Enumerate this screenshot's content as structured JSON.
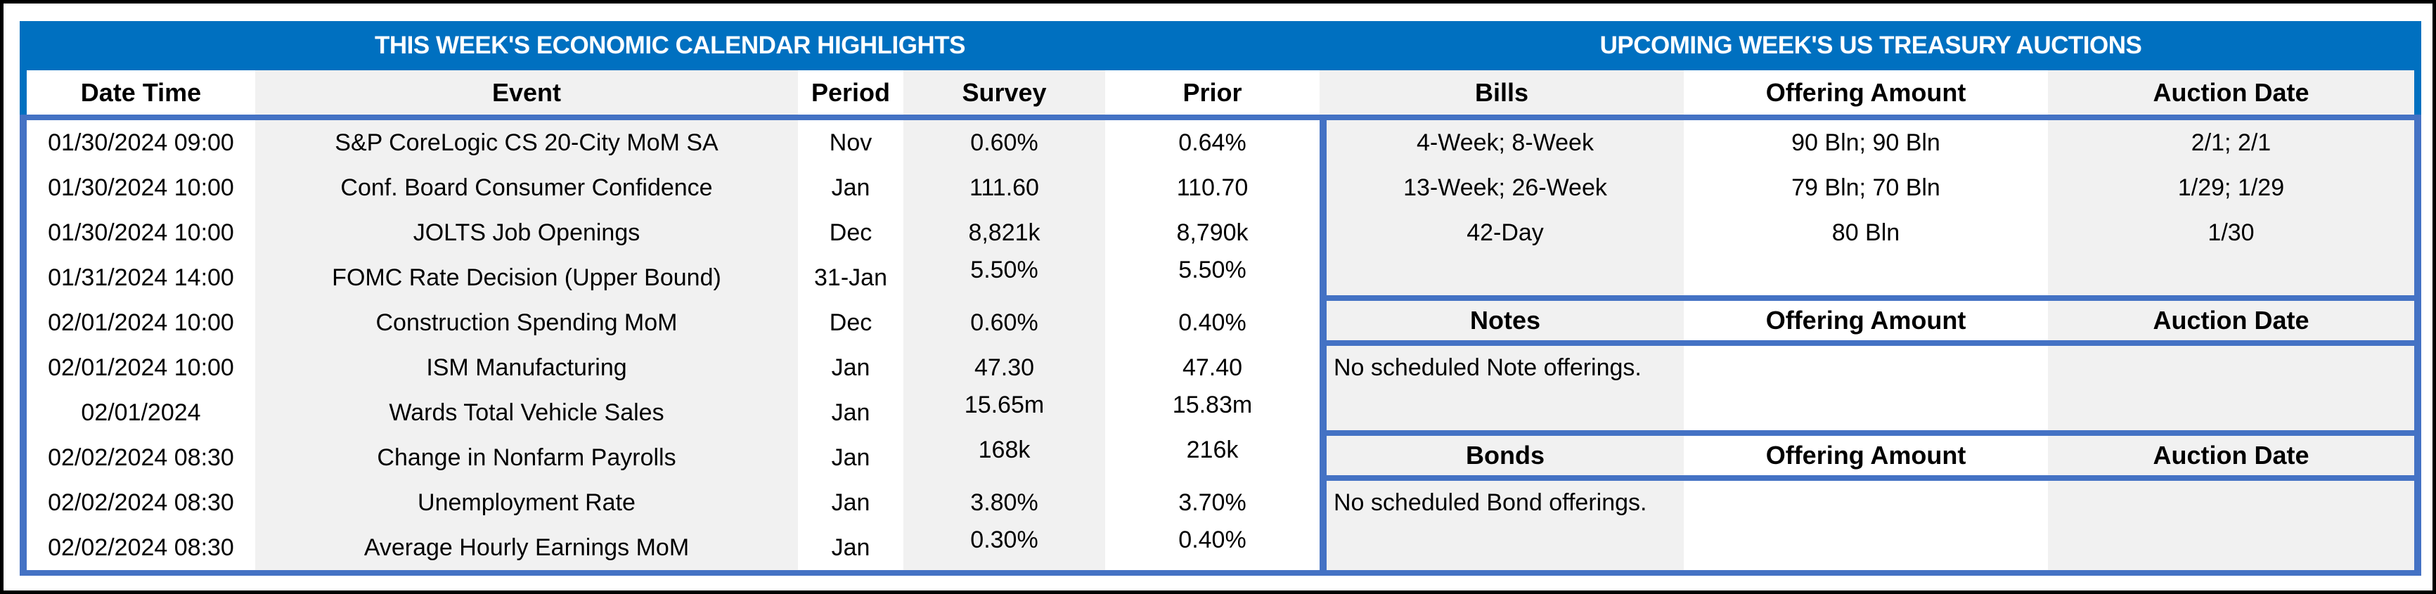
{
  "colors": {
    "band_blue": "#0070C0",
    "border_blue": "#4472C4",
    "cell_gray": "#F1F1F1"
  },
  "calendar": {
    "title": "THIS WEEK'S ECONOMIC CALENDAR HIGHLIGHTS",
    "columns": [
      "Date Time",
      "Event",
      "Period",
      "Survey",
      "Prior"
    ],
    "rows": [
      {
        "date_time": "01/30/2024 09:00",
        "event": "S&P CoreLogic CS 20-City MoM SA",
        "period": "Nov",
        "survey": "0.60%",
        "prior": "0.64%"
      },
      {
        "date_time": "01/30/2024 10:00",
        "event": "Conf. Board Consumer Confidence",
        "period": "Jan",
        "survey": "111.60",
        "prior": "110.70"
      },
      {
        "date_time": "01/30/2024 10:00",
        "event": "JOLTS Job Openings",
        "period": "Dec",
        "survey": "8,821k",
        "prior": "8,790k"
      },
      {
        "date_time": "01/31/2024 14:00",
        "event": "FOMC Rate Decision (Upper Bound)",
        "period": "31-Jan",
        "survey": "5.50%",
        "prior": "5.50%"
      },
      {
        "date_time": "02/01/2024 10:00",
        "event": "Construction Spending MoM",
        "period": "Dec",
        "survey": "0.60%",
        "prior": "0.40%"
      },
      {
        "date_time": "02/01/2024 10:00",
        "event": "ISM Manufacturing",
        "period": "Jan",
        "survey": "47.30",
        "prior": "47.40"
      },
      {
        "date_time": "02/01/2024",
        "event": "Wards Total Vehicle Sales",
        "period": "Jan",
        "survey": "15.65m",
        "prior": "15.83m"
      },
      {
        "date_time": "02/02/2024 08:30",
        "event": "Change in Nonfarm Payrolls",
        "period": "Jan",
        "survey": "168k",
        "prior": "216k"
      },
      {
        "date_time": "02/02/2024 08:30",
        "event": "Unemployment Rate",
        "period": "Jan",
        "survey": "3.80%",
        "prior": "3.70%"
      },
      {
        "date_time": "02/02/2024 08:30",
        "event": "Average Hourly Earnings MoM",
        "period": "Jan",
        "survey": "0.30%",
        "prior": "0.40%"
      }
    ]
  },
  "auctions": {
    "title": "UPCOMING WEEK'S US TREASURY AUCTIONS",
    "bills": {
      "columns": [
        "Bills",
        "Offering Amount",
        "Auction Date"
      ],
      "rows": [
        {
          "security": "4-Week; 8-Week",
          "offering_amount": "90 Bln; 90 Bln",
          "auction_date": "2/1; 2/1"
        },
        {
          "security": "13-Week; 26-Week",
          "offering_amount": "79 Bln; 70 Bln",
          "auction_date": "1/29; 1/29"
        },
        {
          "security": "42-Day",
          "offering_amount": "80 Bln",
          "auction_date": "1/30"
        }
      ]
    },
    "notes": {
      "columns": [
        "Notes",
        "Offering Amount",
        "Auction Date"
      ],
      "message": "No scheduled Note offerings."
    },
    "bonds": {
      "columns": [
        "Bonds",
        "Offering Amount",
        "Auction Date"
      ],
      "message": "No scheduled Bond offerings."
    }
  }
}
